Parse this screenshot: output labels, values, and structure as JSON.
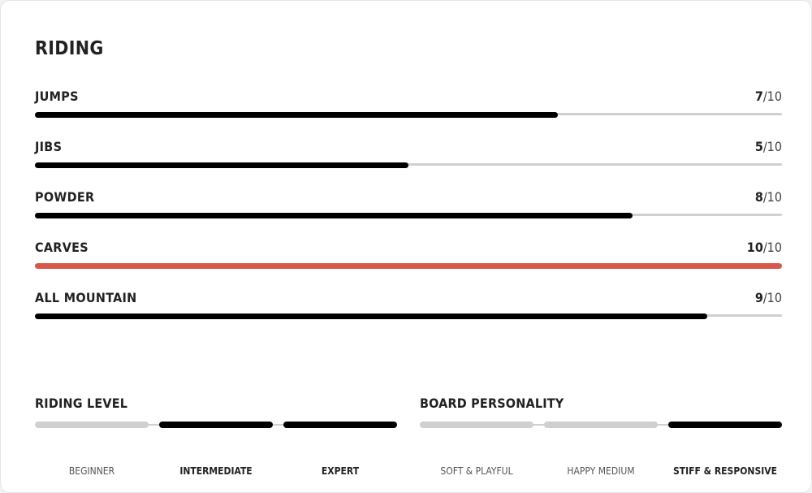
{
  "title": "RIDING",
  "ratings": [
    {
      "label": "JUMPS",
      "value": 7,
      "max": 10,
      "color": "#000000"
    },
    {
      "label": "JIBS",
      "value": 5,
      "max": 10,
      "color": "#000000"
    },
    {
      "label": "POWDER",
      "value": 8,
      "max": 10,
      "color": "#000000"
    },
    {
      "label": "CARVES",
      "value": 10,
      "max": 10,
      "color": "#d9574a"
    },
    {
      "label": "ALL MOUNTAIN",
      "value": 9,
      "max": 10,
      "color": "#000000"
    }
  ],
  "max_label": "/10",
  "riding_level": {
    "heading": "RIDING LEVEL",
    "options": [
      {
        "label": "BEGINNER",
        "active": false
      },
      {
        "label": "INTERMEDIATE",
        "active": true
      },
      {
        "label": "EXPERT",
        "active": true
      }
    ]
  },
  "board_personality": {
    "heading": "BOARD PERSONALITY",
    "options": [
      {
        "label": "SOFT & PLAYFUL",
        "active": false
      },
      {
        "label": "HAPPY MEDIUM",
        "active": false
      },
      {
        "label": "STIFF & RESPONSIVE",
        "active": true
      }
    ]
  }
}
